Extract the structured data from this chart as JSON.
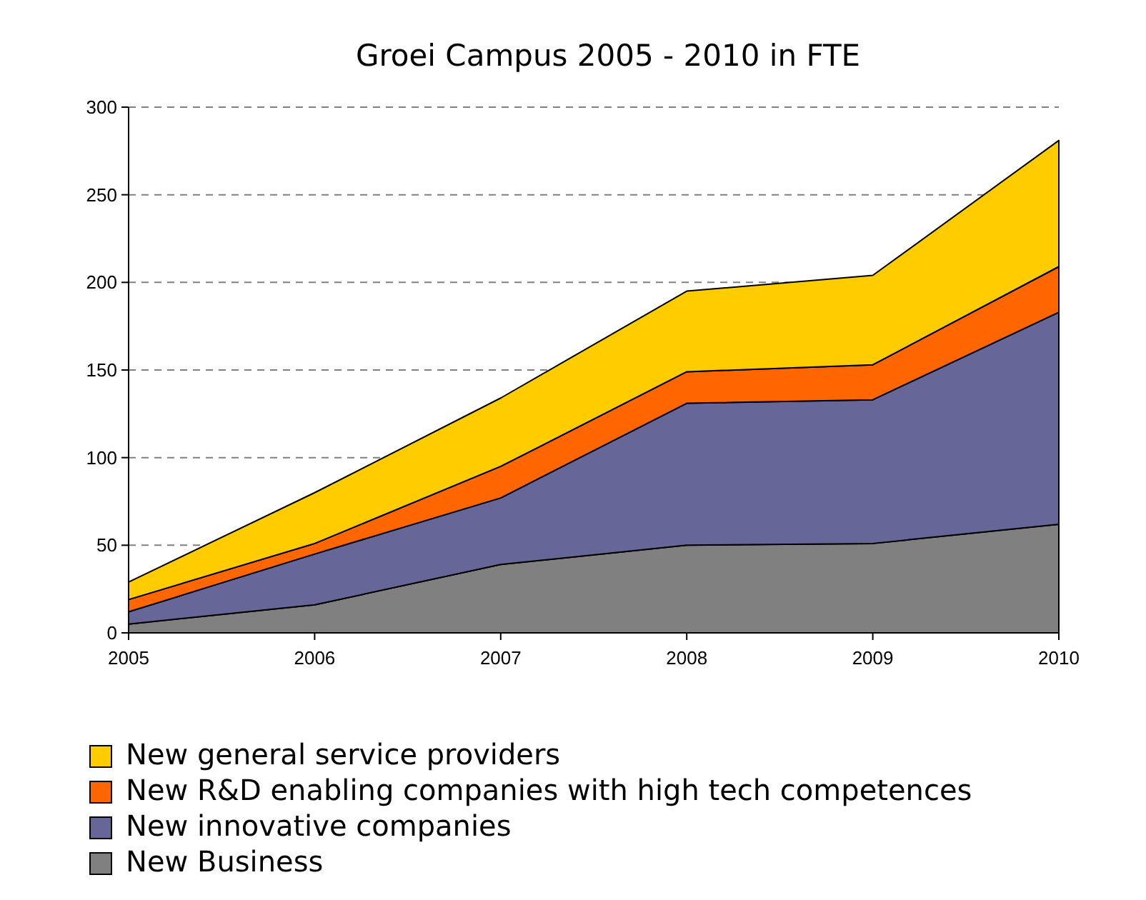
{
  "chart_data": {
    "type": "area",
    "title": "Groei Campus 2005 - 2010 in FTE",
    "stacked": true,
    "x": [
      2005,
      2006,
      2007,
      2008,
      2009,
      2010
    ],
    "xlim": [
      2005,
      2010
    ],
    "xticks": [
      2005,
      2006,
      2007,
      2008,
      2009,
      2010
    ],
    "ylim": [
      0,
      300
    ],
    "yticks": [
      0,
      50,
      100,
      150,
      200,
      250,
      300
    ],
    "grid": "y",
    "legend": "bottom",
    "series": [
      {
        "name": "New Business",
        "color": "#808080",
        "values": [
          5,
          16,
          39,
          50,
          51,
          62
        ]
      },
      {
        "name": "New innovative companies",
        "color": "#666699",
        "values": [
          7,
          29,
          38,
          81,
          82,
          121
        ]
      },
      {
        "name": "New R&D enabling companies with high tech competences",
        "color": "#ff6600",
        "values": [
          7,
          6,
          18,
          18,
          20,
          26
        ]
      },
      {
        "name": "New general service providers",
        "color": "#ffcc00",
        "values": [
          10,
          29,
          39,
          46,
          51,
          72
        ]
      }
    ]
  }
}
